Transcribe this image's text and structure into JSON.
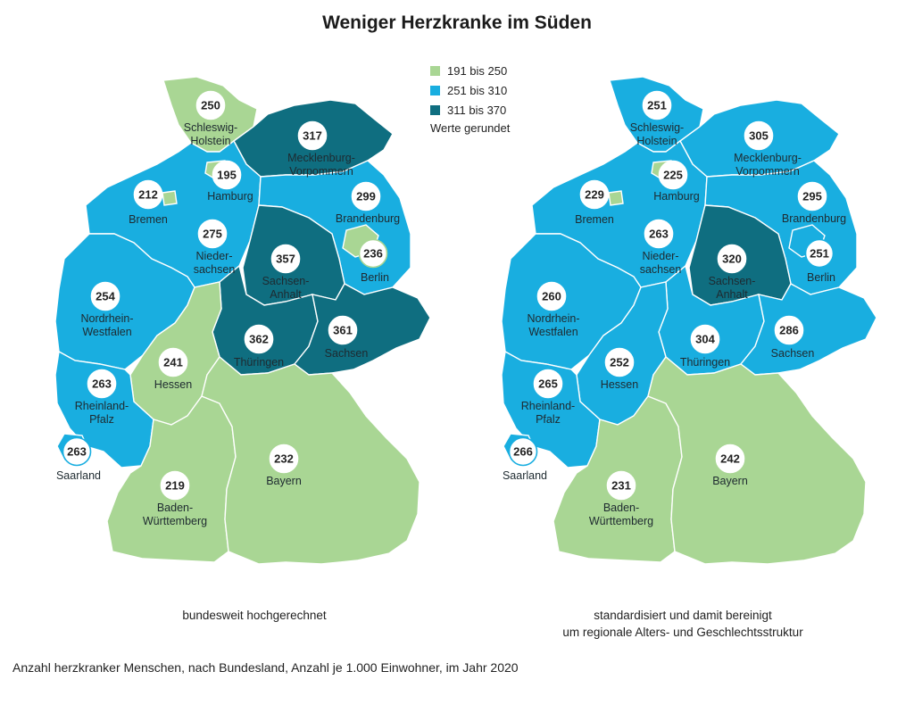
{
  "title": "Weniger Herzkranke im Süden",
  "legend": {
    "items": [
      {
        "label": "191 bis 250",
        "color": "#a9d694"
      },
      {
        "label": "251 bis 310",
        "color": "#19aee0"
      },
      {
        "label": "311 bis 370",
        "color": "#0f6e80"
      }
    ],
    "note": "Werte gerundet"
  },
  "maps": [
    {
      "caption": "bundesweit hochgerechnet",
      "values": {
        "schleswig_holstein": 250,
        "hamburg": 195,
        "mecklenburg_vorpommern": 317,
        "bremen": 212,
        "niedersachsen": 275,
        "brandenburg": 299,
        "berlin": 236,
        "sachsen_anhalt": 357,
        "nordrhein_westfalen": 254,
        "thueringen": 362,
        "sachsen": 361,
        "hessen": 241,
        "rheinland_pfalz": 263,
        "saarland": 263,
        "bayern": 232,
        "baden_wuerttemberg": 219
      }
    },
    {
      "caption": "standardisiert und damit bereinigt\num regionale Alters- und Geschlechtsstruktur",
      "values": {
        "schleswig_holstein": 251,
        "hamburg": 225,
        "mecklenburg_vorpommern": 305,
        "bremen": 229,
        "niedersachsen": 263,
        "brandenburg": 295,
        "berlin": 251,
        "sachsen_anhalt": 320,
        "nordrhein_westfalen": 260,
        "thueringen": 304,
        "sachsen": 286,
        "hessen": 252,
        "rheinland_pfalz": 265,
        "saarland": 266,
        "bayern": 242,
        "baden_wuerttemberg": 231
      }
    }
  ],
  "state_labels": {
    "schleswig_holstein": "Schleswig-\nHolstein",
    "hamburg": "Hamburg",
    "mecklenburg_vorpommern": "Mecklenburg-\nVorpommern",
    "bremen": "Bremen",
    "niedersachsen": "Nieder-\nsachsen",
    "brandenburg": "Brandenburg",
    "berlin": "Berlin",
    "sachsen_anhalt": "Sachsen-\nAnhalt",
    "nordrhein_westfalen": "Nordrhein-\nWestfalen",
    "thueringen": "Thüringen",
    "sachsen": "Sachsen",
    "hessen": "Hessen",
    "rheinland_pfalz": "Rheinland-\nPfalz",
    "saarland": "Saarland",
    "bayern": "Bayern",
    "baden_wuerttemberg": "Baden-\nWürttemberg"
  },
  "footnote": "Anzahl herzkranker Menschen, nach Bundesland, Anzahl je 1.000 Einwohner, im Jahr 2020"
}
